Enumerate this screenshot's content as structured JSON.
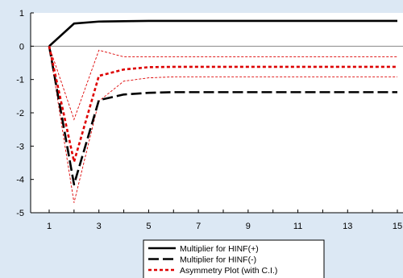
{
  "chart_data": {
    "type": "line",
    "title": "",
    "xlabel": "",
    "ylabel": "",
    "x": [
      1,
      2,
      3,
      4,
      5,
      6,
      7,
      8,
      9,
      10,
      11,
      12,
      13,
      14,
      15
    ],
    "xticks": [
      1,
      3,
      5,
      7,
      9,
      11,
      13,
      15
    ],
    "xticklabels": [
      "1",
      "3",
      "5",
      "7",
      "9",
      "11",
      "13",
      "15"
    ],
    "yticks": [
      1,
      0,
      -1,
      -2,
      -3,
      -4,
      -5
    ],
    "yticklabels": [
      "1",
      "0",
      "-1",
      "-2",
      "-3",
      "-4",
      "-5"
    ],
    "xlim": [
      1,
      15
    ],
    "ylim": [
      -5,
      1
    ],
    "grid": false,
    "legend_position": "bottom-center",
    "series": [
      {
        "name": "Multiplier for HINF(+)",
        "style": "solid",
        "color": "#000000",
        "values": [
          0,
          0.68,
          0.74,
          0.75,
          0.76,
          0.76,
          0.76,
          0.76,
          0.76,
          0.76,
          0.76,
          0.76,
          0.76,
          0.76,
          0.76
        ]
      },
      {
        "name": "Multiplier for HINF(-)",
        "style": "long-dash",
        "color": "#000000",
        "values": [
          0,
          -4.15,
          -1.62,
          -1.45,
          -1.4,
          -1.38,
          -1.38,
          -1.38,
          -1.38,
          -1.38,
          -1.38,
          -1.38,
          -1.38,
          -1.38,
          -1.38
        ]
      },
      {
        "name": "Asymmetry Plot (with C.I.)",
        "style": "short-dash",
        "color": "#dd0000",
        "values": [
          0,
          -3.47,
          -0.89,
          -0.7,
          -0.63,
          -0.62,
          -0.62,
          -0.62,
          -0.62,
          -0.62,
          -0.62,
          -0.62,
          -0.62,
          -0.62,
          -0.62
        ],
        "ci_upper": [
          0,
          -2.2,
          -0.12,
          -0.32,
          -0.32,
          -0.32,
          -0.32,
          -0.32,
          -0.32,
          -0.32,
          -0.32,
          -0.32,
          -0.32,
          -0.32,
          -0.32
        ],
        "ci_lower": [
          0,
          -4.7,
          -1.65,
          -1.05,
          -0.95,
          -0.92,
          -0.92,
          -0.92,
          -0.92,
          -0.92,
          -0.92,
          -0.92,
          -0.92,
          -0.92,
          -0.92
        ]
      }
    ],
    "zero_line": true
  }
}
